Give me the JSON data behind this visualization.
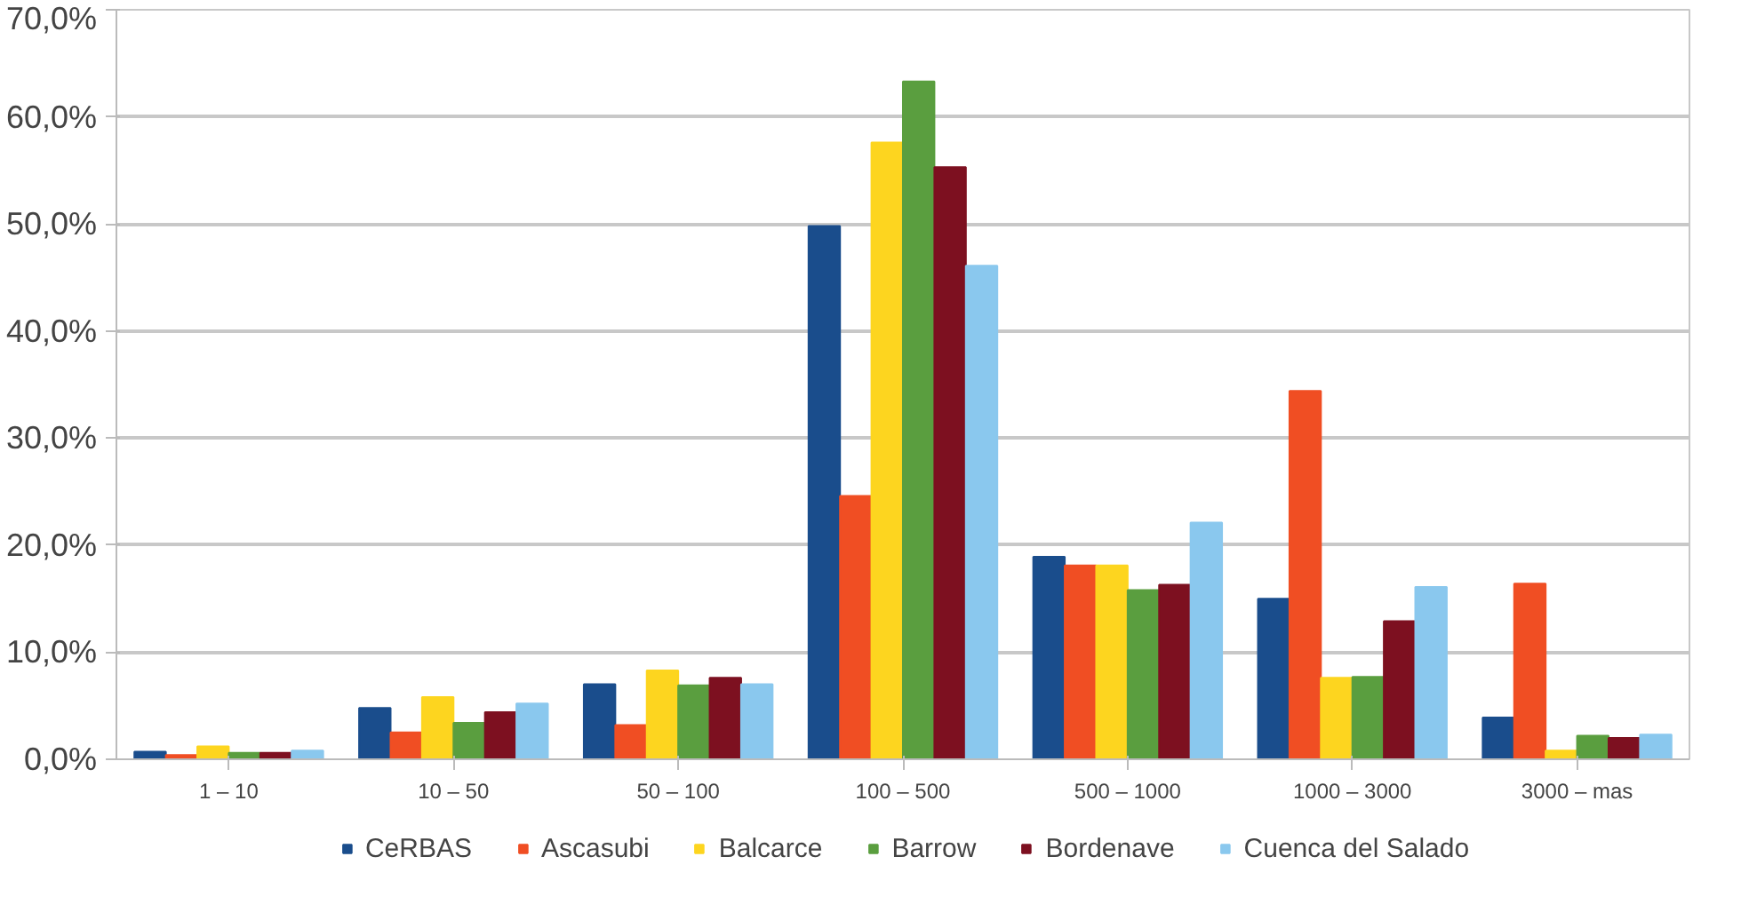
{
  "chart_data": {
    "type": "bar",
    "categories": [
      "1 – 10",
      "10 – 50",
      "50 – 100",
      "100 – 500",
      "500 – 1000",
      "1000 – 3000",
      "3000 – mas"
    ],
    "series": [
      {
        "name": "CeRBAS",
        "color": "#1a4d8c",
        "values": [
          0.7,
          4.8,
          7.0,
          49.8,
          18.9,
          15.0,
          3.9
        ]
      },
      {
        "name": "Ascasubi",
        "color": "#f04e23",
        "values": [
          0.4,
          2.5,
          3.2,
          24.6,
          18.1,
          34.4,
          16.4
        ]
      },
      {
        "name": "Balcarce",
        "color": "#fdd51f",
        "values": [
          1.2,
          5.8,
          8.3,
          57.6,
          18.1,
          7.6,
          0.8
        ]
      },
      {
        "name": "Barrow",
        "color": "#5a9e3f",
        "values": [
          0.6,
          3.4,
          6.9,
          63.3,
          15.8,
          7.7,
          2.2
        ]
      },
      {
        "name": "Bordenave",
        "color": "#7d1020",
        "values": [
          0.6,
          4.4,
          7.6,
          55.3,
          16.3,
          12.9,
          2.0
        ]
      },
      {
        "name": "Cuenca del Salado",
        "color": "#8ac8ee",
        "values": [
          0.8,
          5.2,
          7.0,
          46.1,
          22.1,
          16.1,
          2.3
        ]
      }
    ],
    "ylim": [
      0,
      70
    ],
    "yticks": [
      {
        "value": 0,
        "label": "0,0%"
      },
      {
        "value": 10,
        "label": "10,0%"
      },
      {
        "value": 20,
        "label": "20,0%"
      },
      {
        "value": 30,
        "label": "30,0%"
      },
      {
        "value": 40,
        "label": "40,0%"
      },
      {
        "value": 50,
        "label": "50,0%"
      },
      {
        "value": 60,
        "label": "60,0%"
      },
      {
        "value": 70,
        "label": "70,0%"
      }
    ],
    "grid": "y",
    "legend": "bottom"
  }
}
